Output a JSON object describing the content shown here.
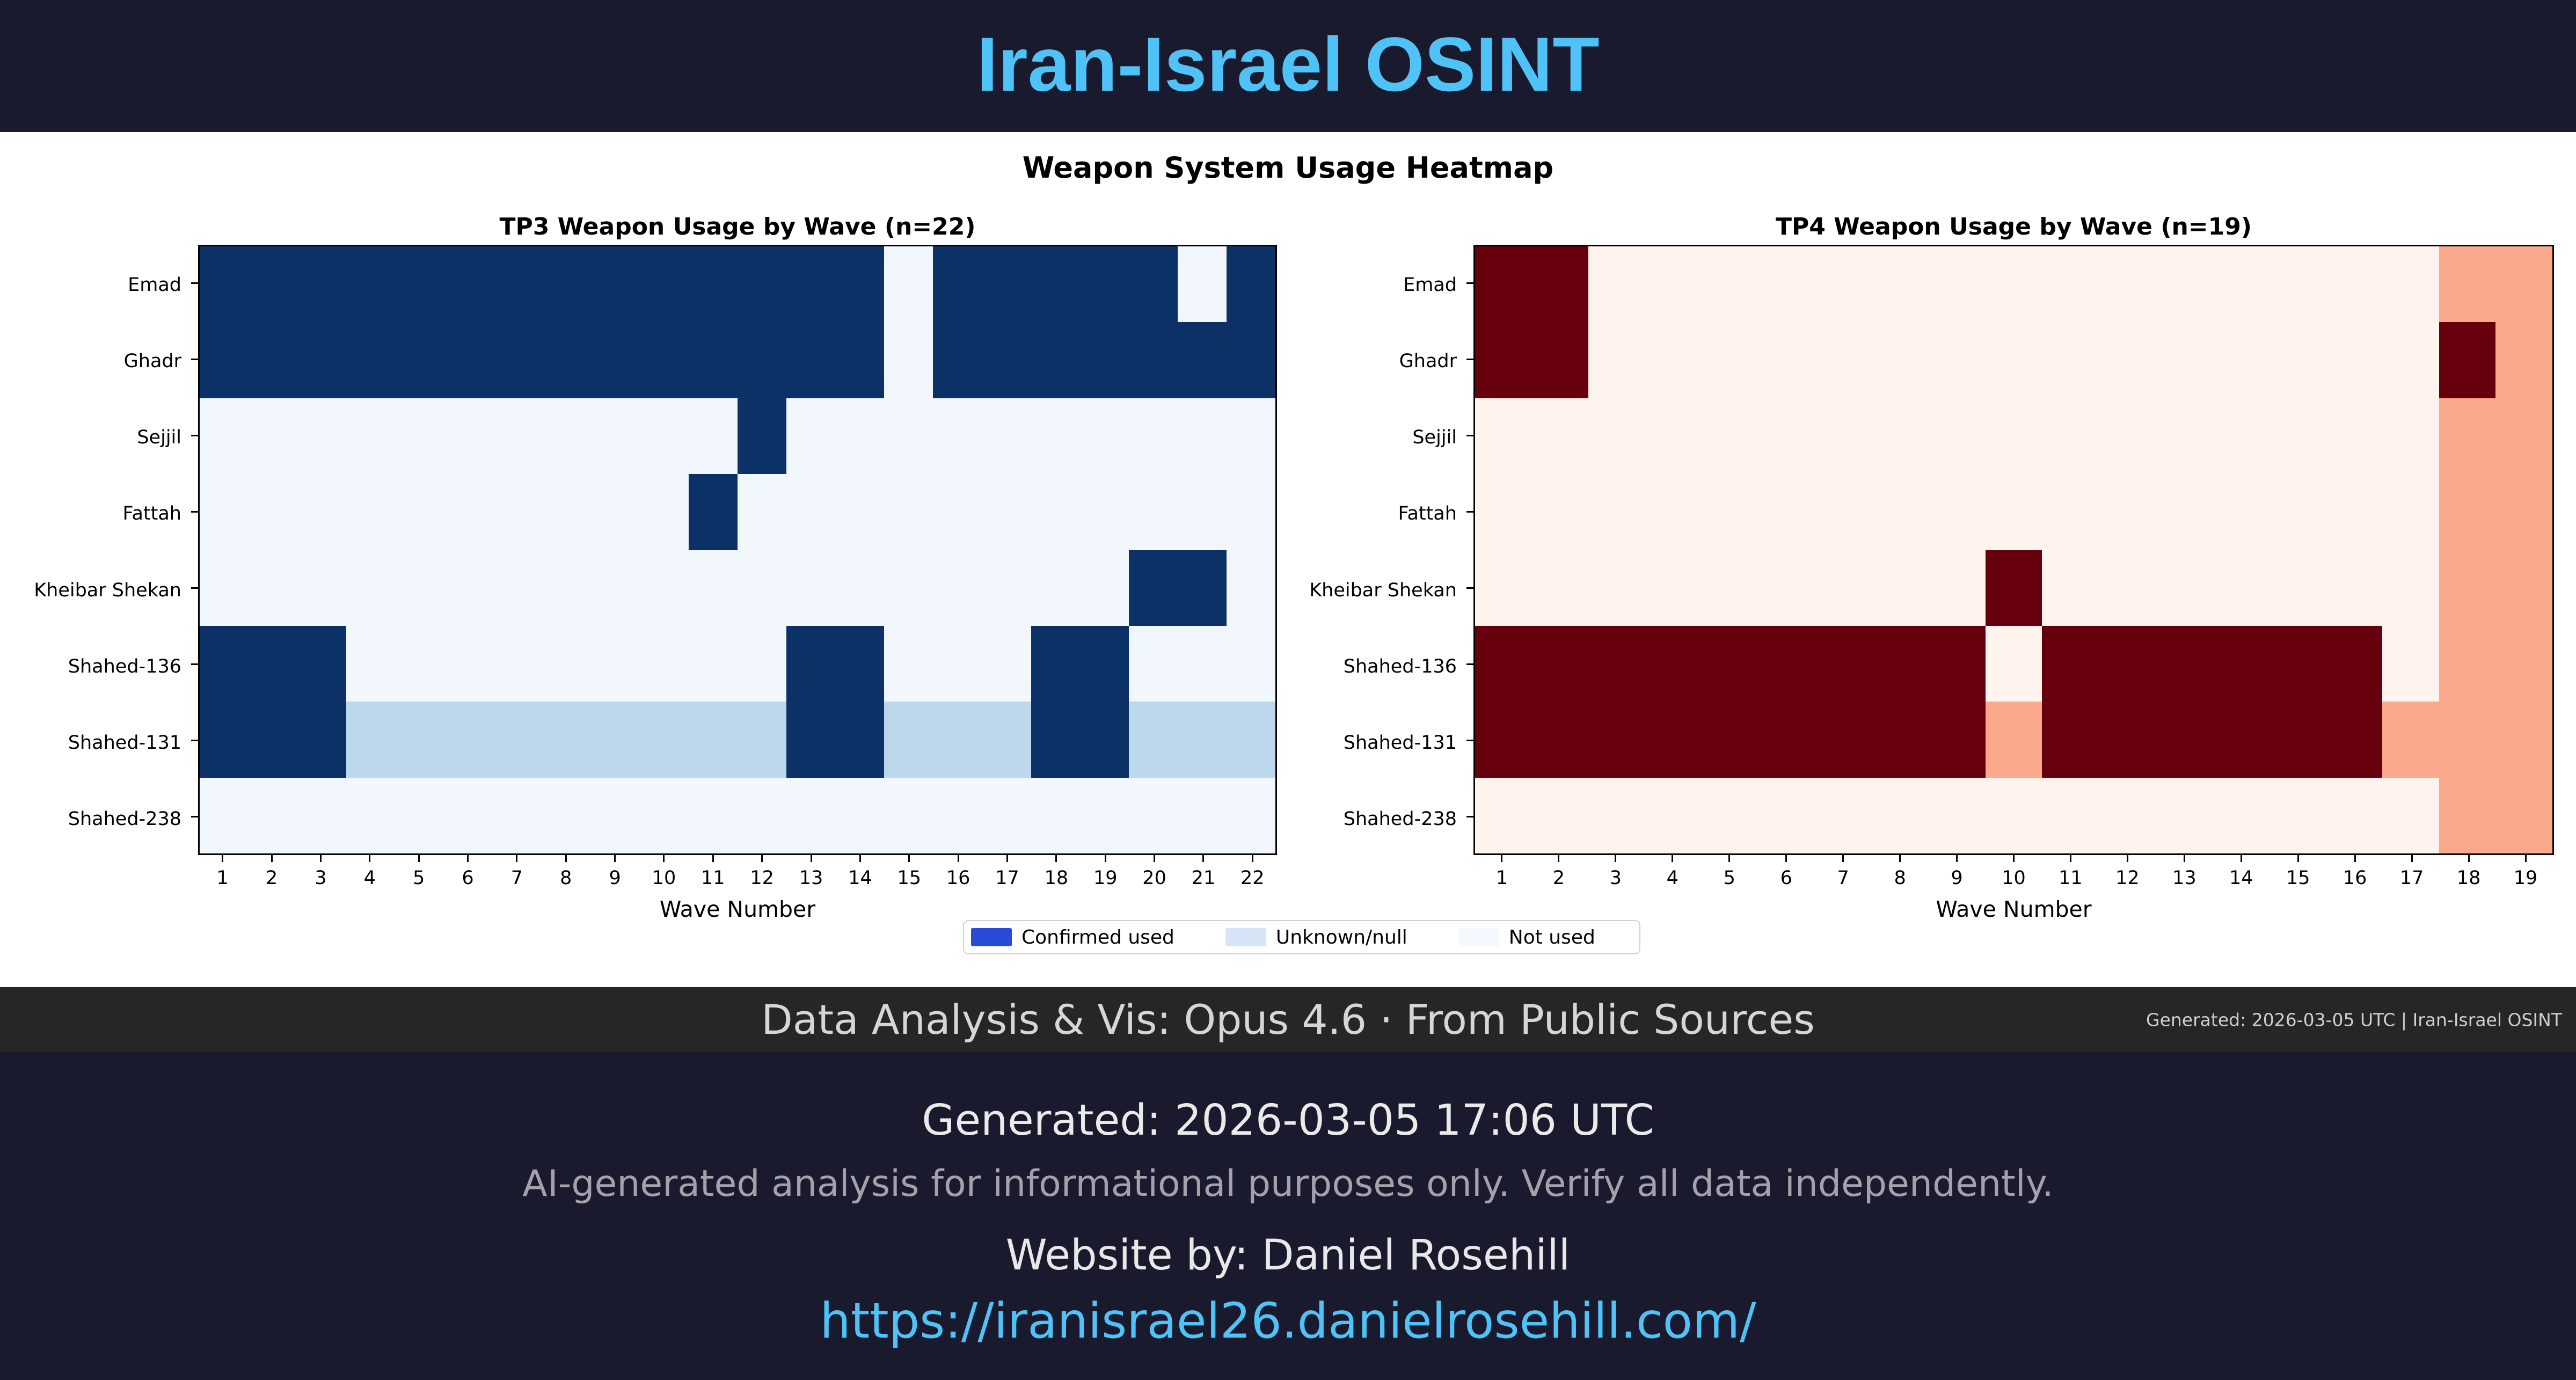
{
  "header": {
    "title": "Iran-Israel OSINT"
  },
  "chart": {
    "suptitle": "Weapon System Usage Heatmap",
    "legend": [
      {
        "label": "Confirmed used",
        "color": "#2a4bd8"
      },
      {
        "label": "Unknown/null",
        "color": "#d6e4f8"
      },
      {
        "label": "Not used",
        "color": "#f5f8fe"
      }
    ]
  },
  "chart_data": [
    {
      "type": "heatmap",
      "title": "TP3 Weapon Usage by Wave (n=22)",
      "xlabel": "Wave Number",
      "ylabel": "",
      "legend_entries": [
        "Confirmed used",
        "Unknown/null",
        "Not used"
      ],
      "rows": [
        "Emad",
        "Ghadr",
        "Sejjil",
        "Fattah",
        "Kheibar Shekan",
        "Shahed-136",
        "Shahed-131",
        "Shahed-238"
      ],
      "x": [
        1,
        2,
        3,
        4,
        5,
        6,
        7,
        8,
        9,
        10,
        11,
        12,
        13,
        14,
        15,
        16,
        17,
        18,
        19,
        20,
        21,
        22
      ],
      "value_meaning": {
        "2": "Confirmed used",
        "1": "Unknown/null",
        "0": "Not used"
      },
      "colors": {
        "2": "#0b3166",
        "1": "#bdd7ec",
        "0": "#f2f7fd"
      },
      "matrix": [
        [
          2,
          2,
          2,
          2,
          2,
          2,
          2,
          2,
          2,
          2,
          2,
          2,
          2,
          2,
          0,
          2,
          2,
          2,
          2,
          2,
          0,
          2
        ],
        [
          2,
          2,
          2,
          2,
          2,
          2,
          2,
          2,
          2,
          2,
          2,
          2,
          2,
          2,
          0,
          2,
          2,
          2,
          2,
          2,
          2,
          2
        ],
        [
          0,
          0,
          0,
          0,
          0,
          0,
          0,
          0,
          0,
          0,
          0,
          2,
          0,
          0,
          0,
          0,
          0,
          0,
          0,
          0,
          0,
          0
        ],
        [
          0,
          0,
          0,
          0,
          0,
          0,
          0,
          0,
          0,
          0,
          2,
          0,
          0,
          0,
          0,
          0,
          0,
          0,
          0,
          0,
          0,
          0
        ],
        [
          0,
          0,
          0,
          0,
          0,
          0,
          0,
          0,
          0,
          0,
          0,
          0,
          0,
          0,
          0,
          0,
          0,
          0,
          0,
          2,
          2,
          0
        ],
        [
          2,
          2,
          2,
          0,
          0,
          0,
          0,
          0,
          0,
          0,
          0,
          0,
          2,
          2,
          0,
          0,
          0,
          2,
          2,
          0,
          0,
          0
        ],
        [
          2,
          2,
          2,
          1,
          1,
          1,
          1,
          1,
          1,
          1,
          1,
          1,
          2,
          2,
          1,
          1,
          1,
          2,
          2,
          1,
          1,
          1
        ],
        [
          0,
          0,
          0,
          0,
          0,
          0,
          0,
          0,
          0,
          0,
          0,
          0,
          0,
          0,
          0,
          0,
          0,
          0,
          0,
          0,
          0,
          0
        ]
      ]
    },
    {
      "type": "heatmap",
      "title": "TP4 Weapon Usage by Wave (n=19)",
      "xlabel": "Wave Number",
      "ylabel": "",
      "legend_entries": [
        "Confirmed used",
        "Unknown/null",
        "Not used"
      ],
      "rows": [
        "Emad",
        "Ghadr",
        "Sejjil",
        "Fattah",
        "Kheibar Shekan",
        "Shahed-136",
        "Shahed-131",
        "Shahed-238"
      ],
      "x": [
        1,
        2,
        3,
        4,
        5,
        6,
        7,
        8,
        9,
        10,
        11,
        12,
        13,
        14,
        15,
        16,
        17,
        18,
        19
      ],
      "value_meaning": {
        "2": "Confirmed used",
        "1": "Unknown/null",
        "0": "Not used"
      },
      "colors": {
        "2": "#67000d",
        "1": "#fba98c",
        "0": "#fff3ed"
      },
      "matrix": [
        [
          2,
          2,
          0,
          0,
          0,
          0,
          0,
          0,
          0,
          0,
          0,
          0,
          0,
          0,
          0,
          0,
          0,
          1,
          1
        ],
        [
          2,
          2,
          0,
          0,
          0,
          0,
          0,
          0,
          0,
          0,
          0,
          0,
          0,
          0,
          0,
          0,
          0,
          2,
          1
        ],
        [
          0,
          0,
          0,
          0,
          0,
          0,
          0,
          0,
          0,
          0,
          0,
          0,
          0,
          0,
          0,
          0,
          0,
          1,
          1
        ],
        [
          0,
          0,
          0,
          0,
          0,
          0,
          0,
          0,
          0,
          0,
          0,
          0,
          0,
          0,
          0,
          0,
          0,
          1,
          1
        ],
        [
          0,
          0,
          0,
          0,
          0,
          0,
          0,
          0,
          0,
          2,
          0,
          0,
          0,
          0,
          0,
          0,
          0,
          1,
          1
        ],
        [
          2,
          2,
          2,
          2,
          2,
          2,
          2,
          2,
          2,
          0,
          2,
          2,
          2,
          2,
          2,
          2,
          0,
          1,
          1
        ],
        [
          2,
          2,
          2,
          2,
          2,
          2,
          2,
          2,
          2,
          1,
          2,
          2,
          2,
          2,
          2,
          2,
          1,
          1,
          1
        ],
        [
          0,
          0,
          0,
          0,
          0,
          0,
          0,
          0,
          0,
          0,
          0,
          0,
          0,
          0,
          0,
          0,
          0,
          1,
          1
        ]
      ]
    }
  ],
  "footer_bar": {
    "center": "Data Analysis & Vis: Opus 4.6 · From Public Sources",
    "right": "Generated: 2026-03-05 UTC | Iran-Israel OSINT"
  },
  "footer": {
    "generated": "Generated: 2026-03-05 17:06 UTC",
    "disclaimer": "AI-generated analysis for informational purposes only. Verify all data independently.",
    "credit": "Website by: Daniel Rosehill",
    "link": "https://iranisrael26.danielrosehill.com/"
  }
}
